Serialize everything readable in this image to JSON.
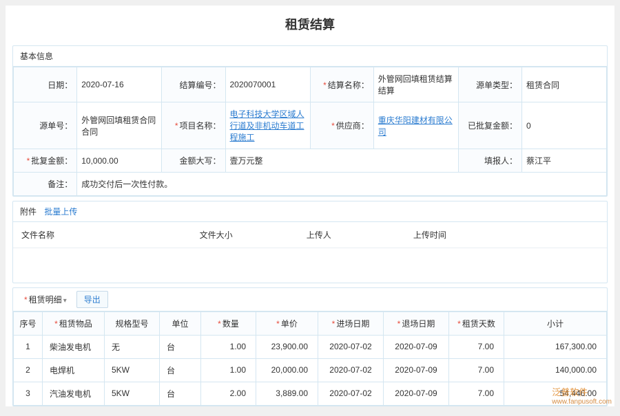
{
  "title": "租赁结算",
  "sections": {
    "basic_title": "基本信息",
    "attach_title": "附件",
    "upload_btn": "批量上传",
    "detail_title": "租赁明细",
    "export_btn": "导出"
  },
  "labels": {
    "date": "日期：",
    "settle_no": "结算编号：",
    "settle_name": "结算名称：",
    "src_type": "源单类型：",
    "src_no": "源单号：",
    "project": "项目名称：",
    "supplier": "供应商：",
    "approved_amt": "已批复金额：",
    "approve_amt": "批复金额：",
    "amt_cn": "金额大写：",
    "filler": "填报人：",
    "remark": "备注："
  },
  "info": {
    "date": "2020-07-16",
    "settle_no": "2020070001",
    "settle_name": "外管网回填租赁结算结算",
    "src_type": "租赁合同",
    "src_no": "外管网回填租赁合同合同",
    "project": "电子科技大学区域人行道及非机动车道工程施工",
    "supplier": "重庆华阳建材有限公司",
    "approved_amt": "0",
    "approve_amt": "10,000.00",
    "amt_cn": "壹万元整",
    "filler": "蔡江平",
    "remark": "成功交付后一次性付款。"
  },
  "attach_cols": {
    "name": "文件名称",
    "size": "文件大小",
    "uploader": "上传人",
    "time": "上传时间"
  },
  "detail_cols": {
    "idx": "序号",
    "item": "租赁物品",
    "spec": "规格型号",
    "unit": "单位",
    "qty": "数量",
    "price": "单价",
    "in_date": "进场日期",
    "out_date": "退场日期",
    "days": "租赁天数",
    "subtotal": "小计"
  },
  "detail_rows": [
    {
      "idx": "1",
      "item": "柴油发电机",
      "spec": "无",
      "unit": "台",
      "qty": "1.00",
      "price": "23,900.00",
      "in": "2020-07-02",
      "out": "2020-07-09",
      "days": "7.00",
      "subtotal": "167,300.00"
    },
    {
      "idx": "2",
      "item": "电焊机",
      "spec": "5KW",
      "unit": "台",
      "qty": "1.00",
      "price": "20,000.00",
      "in": "2020-07-02",
      "out": "2020-07-09",
      "days": "7.00",
      "subtotal": "140,000.00"
    },
    {
      "idx": "3",
      "item": "汽油发电机",
      "spec": "5KW",
      "unit": "台",
      "qty": "2.00",
      "price": "3,889.00",
      "in": "2020-07-02",
      "out": "2020-07-09",
      "days": "7.00",
      "subtotal": "54,446.00"
    }
  ],
  "watermark": {
    "brand": "泛普软件",
    "url": "www.fanpusoft.com"
  }
}
